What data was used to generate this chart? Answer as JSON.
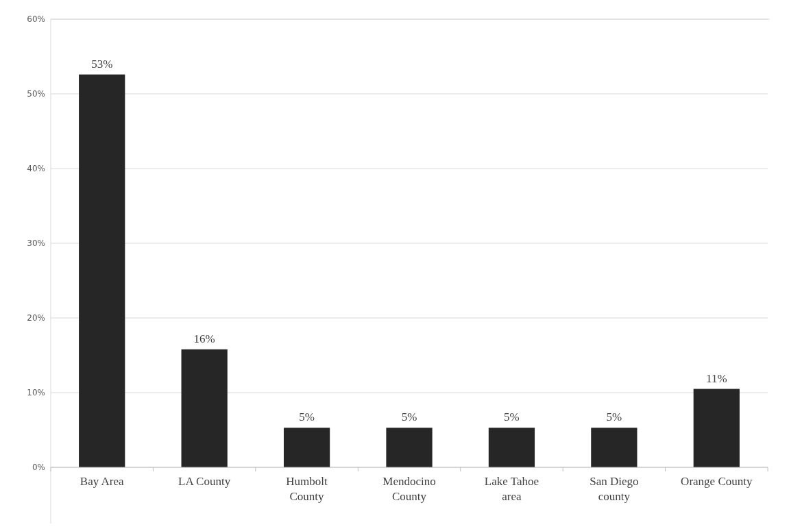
{
  "chart_data": {
    "type": "bar",
    "categories": [
      "Bay Area",
      "LA County",
      "Humbolt County",
      "Mendocino County",
      "Lake Tahoe area",
      "San Diego county",
      "Orange County"
    ],
    "values": [
      52.6,
      15.8,
      5.3,
      5.3,
      5.3,
      5.3,
      10.5
    ],
    "value_labels": [
      "53%",
      "16%",
      "5%",
      "5%",
      "5%",
      "5%",
      "11%"
    ],
    "color": "#262626",
    "ylim": [
      0,
      60
    ],
    "yticks": [
      {
        "value": 0,
        "label": "0%"
      },
      {
        "value": 10,
        "label": "10%"
      },
      {
        "value": 20,
        "label": "20%"
      },
      {
        "value": 30,
        "label": "30%"
      },
      {
        "value": 40,
        "label": "40%"
      },
      {
        "value": 50,
        "label": "50%"
      },
      {
        "value": 60,
        "label": "60%"
      }
    ],
    "grid": "y"
  }
}
